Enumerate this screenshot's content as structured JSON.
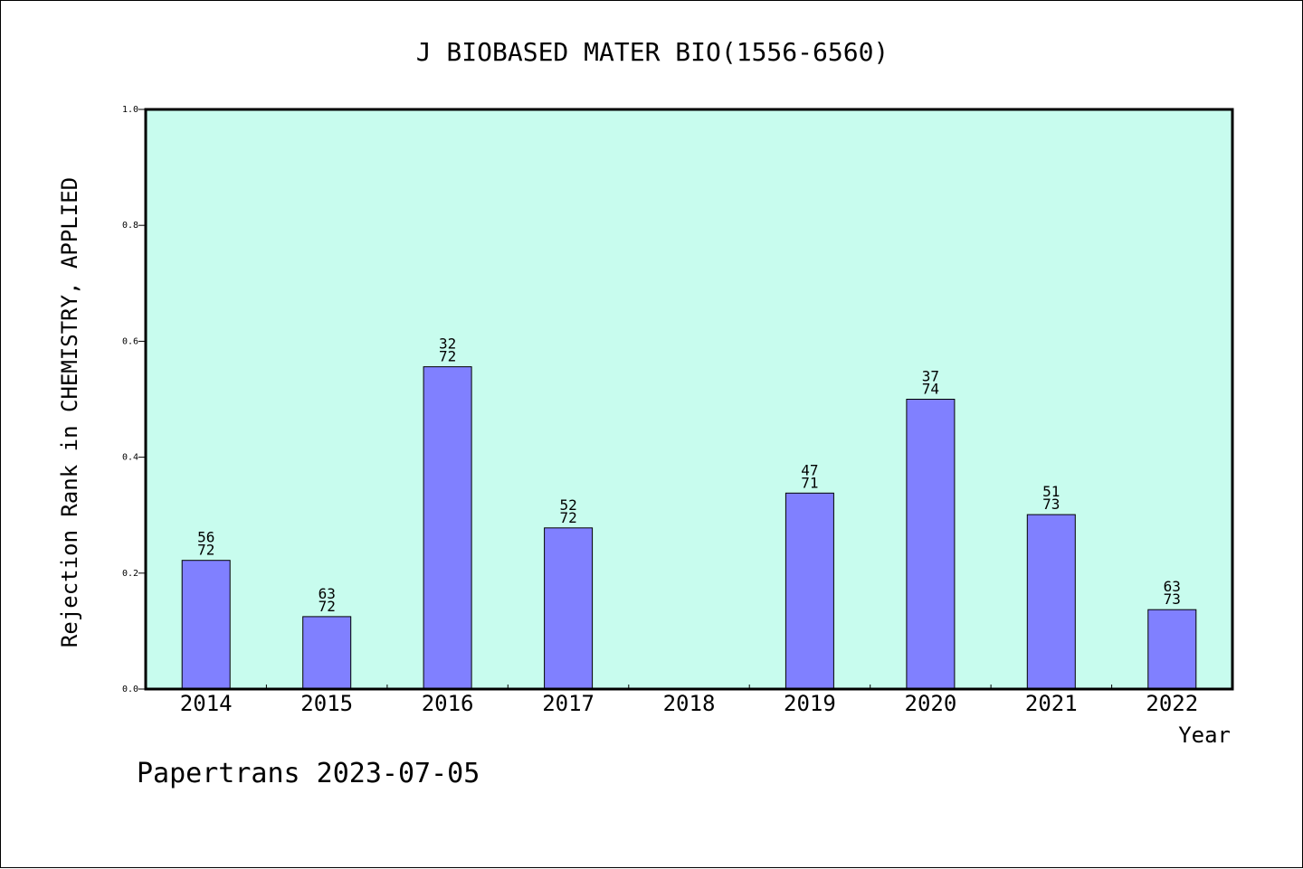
{
  "chart_data": {
    "type": "bar",
    "title": "J BIOBASED MATER BIO(1556-6560)",
    "xlabel": "Year",
    "ylabel": "Rejection Rank in CHEMISTRY, APPLIED",
    "ylim": [
      0,
      1
    ],
    "yticks": [
      "0.0",
      "0.2",
      "0.4",
      "0.6",
      "0.8",
      "1.0"
    ],
    "categories": [
      "2014",
      "2015",
      "2016",
      "2017",
      "2018",
      "2019",
      "2020",
      "2021",
      "2022"
    ],
    "values": [
      0.222,
      0.125,
      0.556,
      0.278,
      null,
      0.338,
      0.5,
      0.301,
      0.137
    ],
    "labels": [
      {
        "top": "56",
        "bottom": "72"
      },
      {
        "top": "63",
        "bottom": "72"
      },
      {
        "top": "32",
        "bottom": "72"
      },
      {
        "top": "52",
        "bottom": "72"
      },
      null,
      {
        "top": "47",
        "bottom": "71"
      },
      {
        "top": "37",
        "bottom": "74"
      },
      {
        "top": "51",
        "bottom": "73"
      },
      {
        "top": "63",
        "bottom": "73"
      }
    ],
    "grid": false,
    "colors": {
      "plot_bg": "#c8fcee",
      "bar": "#8080ff",
      "bar_edge": "#000000"
    }
  },
  "footer": {
    "text": "Papertrans 2023-07-05"
  }
}
